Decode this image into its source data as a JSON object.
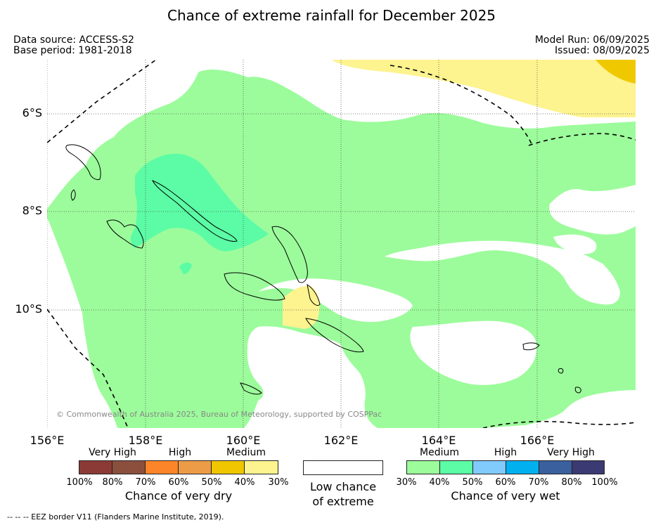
{
  "header": {
    "title": "Chance of extreme rainfall for December 2025",
    "data_source": "Data source: ACCESS-S2",
    "base_period": "Base period: 1981-2018",
    "model_run": "Model Run: 06/09/2025",
    "issued": "Issued: 08/09/2025"
  },
  "map": {
    "lat_labels": [
      "6°S",
      "8°S",
      "10°S"
    ],
    "lon_labels": [
      "156°E",
      "158°E",
      "160°E",
      "162°E",
      "164°E",
      "166°E"
    ],
    "copyright": "© Commonwealth of Australia 2025, Bureau of Meteorology, supported by COSPPac",
    "colors": {
      "wet_medium": "#9cfc9b",
      "wet_medium_high": "#5bfca5",
      "dry_medium": "#fdf38f",
      "dry_medium_high": "#f0c800",
      "coast": "#000000"
    }
  },
  "legend": {
    "dry": {
      "group_labels": [
        "Very High",
        "High",
        "Medium"
      ],
      "colors": [
        "#8b3a36",
        "#8b4f3e",
        "#fd8529",
        "#ec9c47",
        "#efc600",
        "#fdf38f"
      ],
      "ticks": [
        "100%",
        "80%",
        "70%",
        "60%",
        "50%",
        "40%",
        "30%"
      ],
      "caption": "Chance of very dry"
    },
    "low": {
      "caption_line1": "Low chance",
      "caption_line2": "of extreme"
    },
    "wet": {
      "group_labels": [
        "Medium",
        "High",
        "Very High"
      ],
      "colors": [
        "#9cfc9b",
        "#5bfca5",
        "#80cafc",
        "#00b0ef",
        "#3a609e",
        "#3b3a73"
      ],
      "ticks": [
        "30%",
        "40%",
        "50%",
        "60%",
        "70%",
        "80%",
        "100%"
      ],
      "caption": "Chance of very wet"
    }
  },
  "footnote": "--  --  -- EEZ border V11 (Flanders Marine Institute, 2019)."
}
